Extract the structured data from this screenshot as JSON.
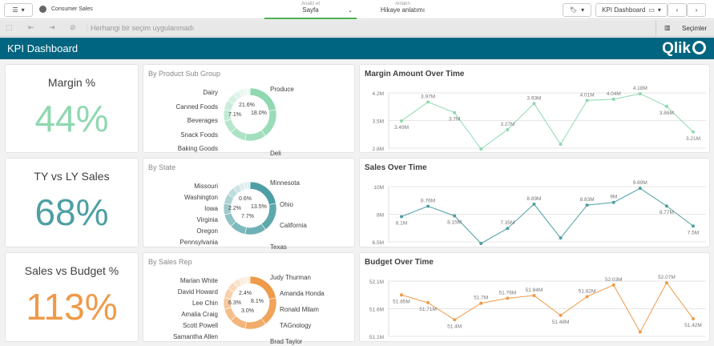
{
  "toolbar": {
    "app_name": "Consumer Sales",
    "analyze_label": "Analiz et",
    "analyze_value": "Sayfa",
    "narrate_label": "Anlatın",
    "narrate_value": "Hikaye anlatımı",
    "sheet_name": "KPI Dashboard"
  },
  "selection_bar": {
    "status": "Herhangi bir seçim uygulanmadı",
    "selections_label": "Seçimler"
  },
  "header": {
    "title": "KPI Dashboard",
    "logo": "Qlik"
  },
  "kpis": [
    {
      "title": "Margin %",
      "value": "44%",
      "color": "#8fd8b0"
    },
    {
      "title": "TY vs LY Sales",
      "value": "68%",
      "color": "#4e9fa3"
    },
    {
      "title": "Sales vs Budget %",
      "value": "113%",
      "color": "#ee9a48"
    }
  ],
  "donuts": [
    {
      "title": "By Product Sub Group",
      "color": "#8fd8b0",
      "labels_right": [
        "Produce",
        "Deli"
      ],
      "labels_left": [
        "Dairy",
        "Canned Foods",
        "Beverages",
        "Snack Foods",
        "Baking Goods"
      ],
      "pcts": [
        "21.6%",
        "18.0%",
        "7.1%"
      ]
    },
    {
      "title": "By State",
      "color": "#4e9fa3",
      "labels_right": [
        "Minnesota",
        "Ohio",
        "California",
        "Texas"
      ],
      "labels_left": [
        "Missouri",
        "Washington",
        "Iowa",
        "Virginia",
        "Oregon",
        "Pennsylvania"
      ],
      "pcts": [
        "0.6%",
        "13.5%",
        "2.2%",
        "7.7%"
      ]
    },
    {
      "title": "By Sales Rep",
      "color": "#ee9a48",
      "labels_right": [
        "Judy Thurman",
        "Amanda Honda",
        "Ronald Milam",
        "TAGnology",
        "Brad Taylor"
      ],
      "labels_left": [
        "Marian White",
        "David Howard",
        "Lee Chin",
        "Amalia Craig",
        "Scott Powell",
        "Samantha Allen"
      ],
      "pcts": [
        "2.4%",
        "8.1%",
        "6.3%",
        "3.0%"
      ]
    }
  ],
  "chart_data": [
    {
      "type": "line",
      "title": "Margin Amount Over Time",
      "color": "#8fd8b0",
      "yticks": [
        "4.2M",
        "3.5M",
        "2.8M"
      ],
      "ylim": [
        2.8,
        4.2
      ],
      "values": [
        3.49,
        3.97,
        3.7,
        2.78,
        3.27,
        3.93,
        2.9,
        4.01,
        4.04,
        4.18,
        3.86,
        3.21
      ],
      "labels": [
        "3.49M",
        "3.97M",
        "3.7M",
        "",
        "3.27M",
        "3.93M",
        "",
        "4.01M",
        "4.04M",
        "4.18M",
        "3.86M",
        "3.21M"
      ],
      "grid": true
    },
    {
      "type": "line",
      "title": "Sales Over Time",
      "color": "#4e9fa3",
      "yticks": [
        "10M",
        "8M",
        "6.5M"
      ],
      "ylim": [
        6.5,
        10
      ],
      "values": [
        8.1,
        8.76,
        8.15,
        6.4,
        7.35,
        8.89,
        6.75,
        8.83,
        9.0,
        9.89,
        8.77,
        7.5
      ],
      "labels": [
        "8.1M",
        "8.76M",
        "8.15M",
        "",
        "7.35M",
        "8.89M",
        "",
        "8.83M",
        "9M",
        "9.89M",
        "8.77M",
        "7.5M"
      ],
      "grid": true
    },
    {
      "type": "line",
      "title": "Budget Over Time",
      "color": "#ee9a48",
      "yticks": [
        "52.1M",
        "51.6M",
        "51.1M"
      ],
      "ylim": [
        51.1,
        52.1
      ],
      "values": [
        51.85,
        51.71,
        51.4,
        51.7,
        51.79,
        51.84,
        51.48,
        51.82,
        52.03,
        51.18,
        52.07,
        51.42
      ],
      "labels": [
        "51.85M",
        "51.71M",
        "51.4M",
        "51.7M",
        "51.79M",
        "51.84M",
        "51.48M",
        "51.82M",
        "52.03M",
        "",
        "52.07M",
        "51.42M"
      ],
      "grid": true
    }
  ]
}
